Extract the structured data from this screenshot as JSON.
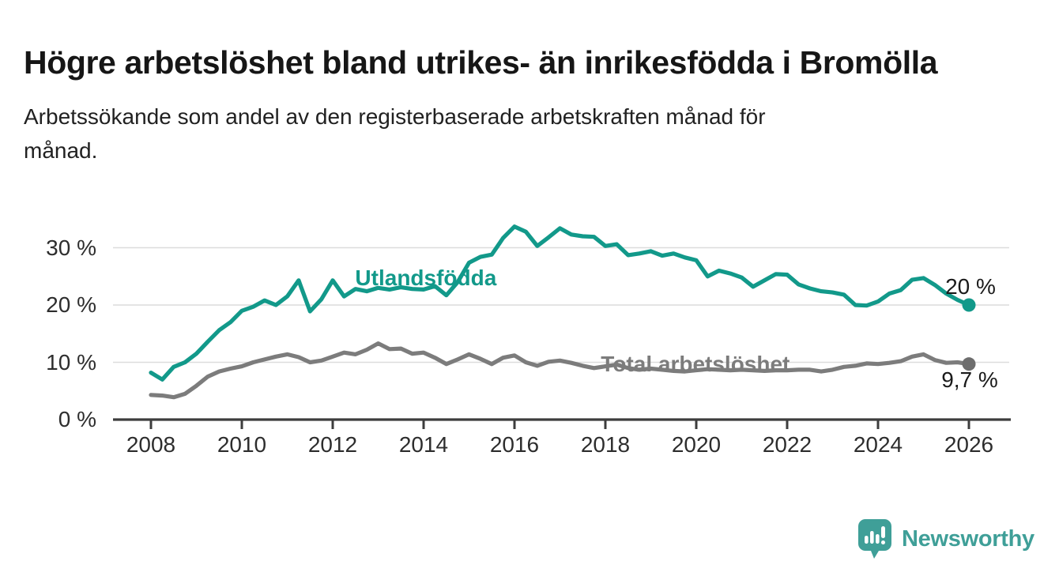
{
  "title": "Högre arbetslöshet bland utrikes- än inrikesfödda i Bromölla",
  "subtitle": "Arbetssökande som andel av den registerbaserade arbetskraften månad för\nmånad.",
  "branding": {
    "logo_text": "Newsworthy",
    "logo_icon": "speech-bubble-bar-chart-icon"
  },
  "colors": {
    "accent_teal": "#12998a",
    "series_gray": "#7c7c7c",
    "dot_gray": "#6d6d6d",
    "axis": "#3d3d3d",
    "grid": "#dcdcdc",
    "text_dark": "#161616",
    "logo_teal": "#3f9f98"
  },
  "chart_data": {
    "type": "line",
    "title": "Högre arbetslöshet bland utrikes- än inrikesfödda i Bromölla",
    "subtitle": "Arbetssökande som andel av den registerbaserade arbetskraften månad för månad.",
    "xlabel": "",
    "ylabel": "",
    "unit": "%",
    "xlim": [
      2007.2,
      2026.9
    ],
    "ylim": [
      0,
      35
    ],
    "grid": "horizontal",
    "legend_position": "inline-labels",
    "x_ticks": [
      2008,
      2010,
      2012,
      2014,
      2016,
      2018,
      2020,
      2022,
      2024,
      2026
    ],
    "y_ticks": [
      {
        "value": 0,
        "label": "0 %"
      },
      {
        "value": 10,
        "label": "10 %"
      },
      {
        "value": 20,
        "label": "20 %"
      },
      {
        "value": 30,
        "label": "30 %"
      }
    ],
    "series": [
      {
        "name": "Utlandsfödda",
        "color": "#12998a",
        "dot_color": "#12998a",
        "end_label": "20 %",
        "end_label_dx": 2,
        "end_label_dy": -23,
        "label_pos": [
          2014.05,
          24.7
        ],
        "points": [
          [
            2008.0,
            8.2
          ],
          [
            2008.25,
            7.0
          ],
          [
            2008.5,
            9.2
          ],
          [
            2008.75,
            10.0
          ],
          [
            2009.0,
            11.5
          ],
          [
            2009.25,
            13.6
          ],
          [
            2009.5,
            15.6
          ],
          [
            2009.75,
            17.0
          ],
          [
            2010.0,
            19.0
          ],
          [
            2010.25,
            19.7
          ],
          [
            2010.5,
            20.8
          ],
          [
            2010.75,
            20.0
          ],
          [
            2011.0,
            21.5
          ],
          [
            2011.25,
            24.3
          ],
          [
            2011.5,
            18.9
          ],
          [
            2011.75,
            21.0
          ],
          [
            2012.0,
            24.3
          ],
          [
            2012.25,
            21.5
          ],
          [
            2012.5,
            22.8
          ],
          [
            2012.75,
            22.4
          ],
          [
            2013.0,
            23.0
          ],
          [
            2013.25,
            22.7
          ],
          [
            2013.5,
            23.1
          ],
          [
            2013.75,
            22.8
          ],
          [
            2014.0,
            22.7
          ],
          [
            2014.25,
            23.3
          ],
          [
            2014.5,
            21.7
          ],
          [
            2014.75,
            24.0
          ],
          [
            2015.0,
            27.4
          ],
          [
            2015.25,
            28.4
          ],
          [
            2015.5,
            28.8
          ],
          [
            2015.75,
            31.7
          ],
          [
            2016.0,
            33.7
          ],
          [
            2016.25,
            32.8
          ],
          [
            2016.5,
            30.3
          ],
          [
            2016.75,
            31.8
          ],
          [
            2017.0,
            33.4
          ],
          [
            2017.25,
            32.3
          ],
          [
            2017.5,
            32.0
          ],
          [
            2017.75,
            31.9
          ],
          [
            2018.0,
            30.3
          ],
          [
            2018.25,
            30.6
          ],
          [
            2018.5,
            28.7
          ],
          [
            2018.75,
            29.0
          ],
          [
            2019.0,
            29.4
          ],
          [
            2019.25,
            28.6
          ],
          [
            2019.5,
            29.0
          ],
          [
            2019.75,
            28.3
          ],
          [
            2020.0,
            27.8
          ],
          [
            2020.25,
            25.0
          ],
          [
            2020.5,
            26.0
          ],
          [
            2020.75,
            25.5
          ],
          [
            2021.0,
            24.8
          ],
          [
            2021.25,
            23.2
          ],
          [
            2021.5,
            24.3
          ],
          [
            2021.75,
            25.4
          ],
          [
            2022.0,
            25.3
          ],
          [
            2022.25,
            23.6
          ],
          [
            2022.5,
            22.9
          ],
          [
            2022.75,
            22.4
          ],
          [
            2023.0,
            22.2
          ],
          [
            2023.25,
            21.8
          ],
          [
            2023.5,
            20.0
          ],
          [
            2023.75,
            19.9
          ],
          [
            2024.0,
            20.6
          ],
          [
            2024.25,
            22.0
          ],
          [
            2024.5,
            22.6
          ],
          [
            2024.75,
            24.4
          ],
          [
            2025.0,
            24.7
          ],
          [
            2025.25,
            23.5
          ],
          [
            2025.5,
            22.0
          ],
          [
            2025.75,
            20.9
          ],
          [
            2026.0,
            20.0
          ]
        ]
      },
      {
        "name": "Total arbetslöshet",
        "color": "#7c7c7c",
        "dot_color": "#6d6d6d",
        "end_label": "9,7 %",
        "end_label_dx": 1,
        "end_label_dy": 20,
        "label_pos": [
          2019.98,
          9.65
        ],
        "points": [
          [
            2008.0,
            4.3
          ],
          [
            2008.25,
            4.2
          ],
          [
            2008.5,
            3.9
          ],
          [
            2008.75,
            4.5
          ],
          [
            2009.0,
            5.9
          ],
          [
            2009.25,
            7.5
          ],
          [
            2009.5,
            8.4
          ],
          [
            2009.75,
            8.9
          ],
          [
            2010.0,
            9.3
          ],
          [
            2010.25,
            10.0
          ],
          [
            2010.5,
            10.5
          ],
          [
            2010.75,
            11.0
          ],
          [
            2011.0,
            11.4
          ],
          [
            2011.25,
            10.9
          ],
          [
            2011.5,
            10.0
          ],
          [
            2011.75,
            10.3
          ],
          [
            2012.0,
            11.0
          ],
          [
            2012.25,
            11.7
          ],
          [
            2012.5,
            11.4
          ],
          [
            2012.75,
            12.2
          ],
          [
            2013.0,
            13.3
          ],
          [
            2013.25,
            12.3
          ],
          [
            2013.5,
            12.4
          ],
          [
            2013.75,
            11.5
          ],
          [
            2014.0,
            11.7
          ],
          [
            2014.25,
            10.8
          ],
          [
            2014.5,
            9.7
          ],
          [
            2014.75,
            10.5
          ],
          [
            2015.0,
            11.4
          ],
          [
            2015.25,
            10.6
          ],
          [
            2015.5,
            9.7
          ],
          [
            2015.75,
            10.8
          ],
          [
            2016.0,
            11.2
          ],
          [
            2016.25,
            10.0
          ],
          [
            2016.5,
            9.4
          ],
          [
            2016.75,
            10.1
          ],
          [
            2017.0,
            10.3
          ],
          [
            2017.25,
            9.9
          ],
          [
            2017.5,
            9.4
          ],
          [
            2017.75,
            9.0
          ],
          [
            2018.0,
            9.3
          ],
          [
            2018.25,
            9.6
          ],
          [
            2018.5,
            9.0
          ],
          [
            2018.75,
            8.7
          ],
          [
            2019.0,
            8.9
          ],
          [
            2019.25,
            8.7
          ],
          [
            2019.5,
            8.5
          ],
          [
            2019.75,
            8.4
          ],
          [
            2020.0,
            8.6
          ],
          [
            2020.25,
            8.8
          ],
          [
            2020.5,
            8.7
          ],
          [
            2020.75,
            8.6
          ],
          [
            2021.0,
            8.7
          ],
          [
            2021.25,
            8.6
          ],
          [
            2021.5,
            8.5
          ],
          [
            2021.75,
            8.6
          ],
          [
            2022.0,
            8.6
          ],
          [
            2022.25,
            8.7
          ],
          [
            2022.5,
            8.7
          ],
          [
            2022.75,
            8.4
          ],
          [
            2023.0,
            8.7
          ],
          [
            2023.25,
            9.2
          ],
          [
            2023.5,
            9.4
          ],
          [
            2023.75,
            9.8
          ],
          [
            2024.0,
            9.7
          ],
          [
            2024.25,
            9.9
          ],
          [
            2024.5,
            10.2
          ],
          [
            2024.75,
            11.0
          ],
          [
            2025.0,
            11.4
          ],
          [
            2025.25,
            10.4
          ],
          [
            2025.5,
            9.9
          ],
          [
            2025.75,
            10.0
          ],
          [
            2026.0,
            9.7
          ]
        ]
      }
    ]
  }
}
